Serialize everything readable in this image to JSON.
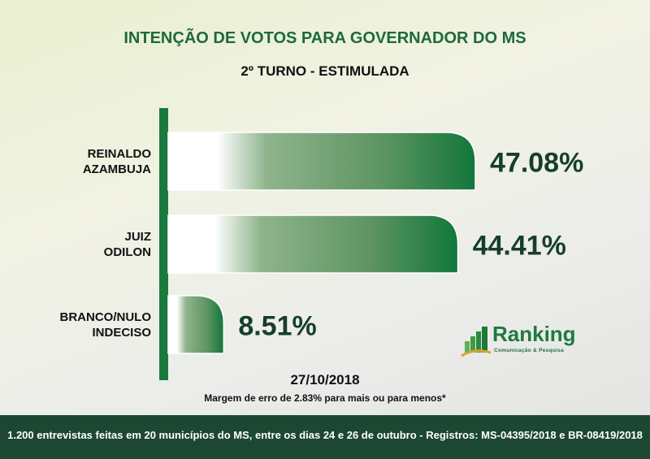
{
  "chart_data": {
    "type": "bar",
    "orientation": "horizontal",
    "title": "INTENÇÃO DE VOTOS PARA GOVERNADOR DO MS",
    "subtitle": "2º TURNO - ESTIMULADA",
    "categories": [
      [
        "REINALDO",
        "AZAMBUJA"
      ],
      [
        "JUIZ",
        "ODILON"
      ],
      [
        "BRANCO/NULO",
        "INDECISO"
      ]
    ],
    "values": [
      47.08,
      44.41,
      8.51
    ],
    "value_labels": [
      "47.08%",
      "44.41%",
      "8.51%"
    ],
    "unit": "%",
    "xlim": [
      0,
      50
    ],
    "grid": false,
    "bar_color": "#1a7a3e"
  },
  "date": "27/10/2018",
  "margin_note": "Margem de erro de 2.83% para mais ou para menos*",
  "footer": "1.200 entrevistas feitas em 20 municípios do MS, entre os dias 24 e 26 de outubro - Registros: MS-04395/2018 e BR-08419/2018",
  "logo": {
    "name": "Ranking",
    "tagline": "Comunicação & Pesquisa"
  }
}
